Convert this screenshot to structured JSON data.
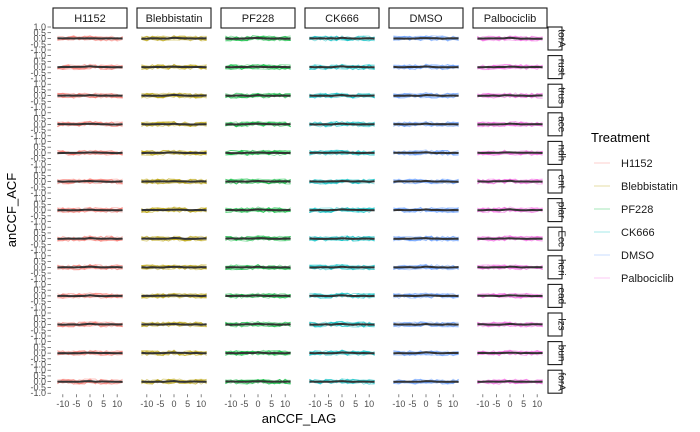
{
  "chart_data": {
    "type": "line",
    "facet_columns": [
      "H1152",
      "Blebbistatin",
      "PF228",
      "CK666",
      "DMSO",
      "Palbociclib"
    ],
    "facet_rows": [
      "torA",
      "rust",
      "trus",
      "ace",
      "ndh",
      "ent",
      "plar",
      "Ecc",
      "heri",
      "ead",
      "lzs",
      "bun",
      "forA"
    ],
    "x_tick_labels": [
      "-10",
      "-5",
      "0",
      "5",
      "10"
    ],
    "y_tick_labels": [
      "-1.0",
      "-0.5",
      "0.0",
      "0.5",
      "1.0"
    ],
    "xlim": [
      -14,
      14
    ],
    "ylim": [
      -1.0,
      1.0
    ],
    "xlabel": "anCCF_LAG",
    "ylabel": "anCCF_ACF",
    "grid": false,
    "legend": {
      "title": "Treatment",
      "position": "right",
      "entries": [
        "H1152",
        "Blebbistatin",
        "PF228",
        "CK666",
        "DMSO",
        "Palbociclib"
      ]
    },
    "series_colors": {
      "H1152": "#F8766D",
      "Blebbistatin": "#B79F00",
      "PF228": "#00BA38",
      "CK666": "#00BFC4",
      "DMSO": "#619CFF",
      "Palbociclib": "#F564E3"
    },
    "mean_line_color": "#333333",
    "lag_values": [
      -12,
      -10,
      -8,
      -6,
      -4,
      -2,
      0,
      2,
      4,
      6,
      8,
      10,
      12
    ],
    "mean_acf_approx": [
      0.0,
      0.0,
      0.0,
      0.0,
      0.0,
      0.02,
      0.05,
      0.02,
      0.0,
      0.0,
      0.0,
      0.0,
      0.0
    ]
  }
}
